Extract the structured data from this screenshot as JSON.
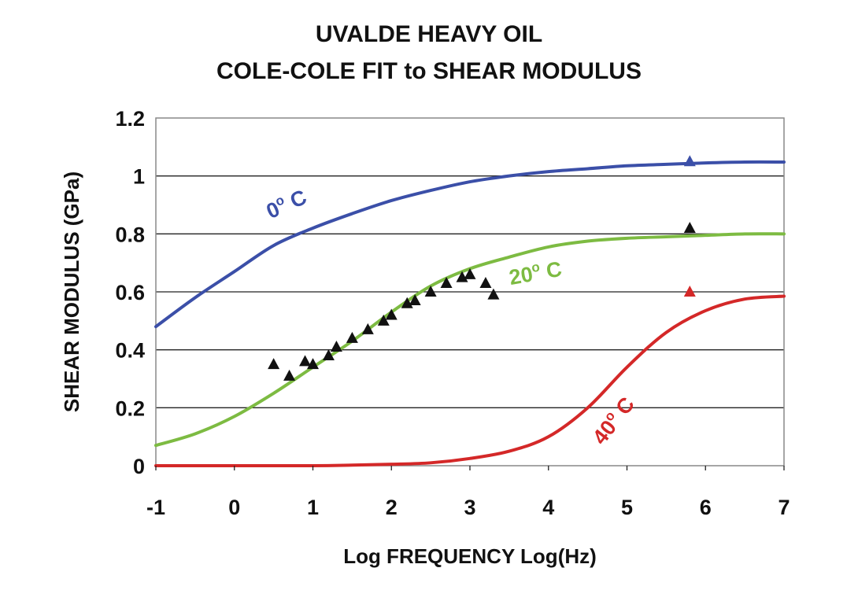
{
  "chart_data": {
    "type": "line",
    "title": "UVALDE HEAVY OIL",
    "subtitle": "COLE-COLE FIT to SHEAR MODULUS",
    "xlabel": "Log FREQUENCY  Log(Hz)",
    "ylabel": "SHEAR MODULUS (GPa)",
    "xlim": [
      -1,
      7
    ],
    "ylim": [
      0,
      1.2
    ],
    "x_ticks": [
      "-1",
      "0",
      "1",
      "2",
      "3",
      "4",
      "5",
      "6",
      "7"
    ],
    "y_ticks": [
      "0",
      "0.2",
      "0.4",
      "0.6",
      "0.8",
      "1",
      "1.2"
    ],
    "grid": "horizontal",
    "series": [
      {
        "name": "0° C",
        "label_main": "0",
        "label_sup": "o",
        "label_tail": " C",
        "color": "#3b4fa8",
        "x": [
          -1,
          -0.5,
          0,
          0.5,
          1,
          1.5,
          2,
          2.5,
          3,
          3.5,
          4,
          4.5,
          5,
          5.5,
          6,
          6.5,
          7
        ],
        "y": [
          0.48,
          0.58,
          0.67,
          0.76,
          0.82,
          0.87,
          0.915,
          0.95,
          0.98,
          1.0,
          1.015,
          1.025,
          1.035,
          1.04,
          1.045,
          1.048,
          1.048
        ]
      },
      {
        "name": "20° C",
        "label_main": "20",
        "label_sup": "o",
        "label_tail": " C",
        "color": "#7dbb42",
        "x": [
          -1,
          -0.5,
          0,
          0.5,
          1,
          1.5,
          2,
          2.5,
          3,
          3.5,
          4,
          4.5,
          5,
          5.5,
          6,
          6.5,
          7
        ],
        "y": [
          0.07,
          0.11,
          0.17,
          0.25,
          0.34,
          0.43,
          0.53,
          0.62,
          0.68,
          0.72,
          0.755,
          0.775,
          0.785,
          0.79,
          0.795,
          0.8,
          0.8
        ]
      },
      {
        "name": "40° C",
        "label_main": "40",
        "label_sup": "o",
        "label_tail": " C",
        "color": "#d42828",
        "x": [
          -1,
          0,
          1,
          1.5,
          2,
          2.5,
          3,
          3.5,
          4,
          4.5,
          5,
          5.5,
          6,
          6.5,
          7
        ],
        "y": [
          0,
          0,
          0,
          0.002,
          0.005,
          0.01,
          0.025,
          0.05,
          0.1,
          0.2,
          0.34,
          0.46,
          0.535,
          0.575,
          0.585
        ]
      }
    ],
    "measured_points": [
      {
        "color": "#111111",
        "x": [
          0.5,
          0.7,
          0.9,
          1.0,
          1.2,
          1.3,
          1.5,
          1.7,
          1.9,
          2.0,
          2.2,
          2.3,
          2.5,
          2.7,
          2.9,
          3.0,
          3.2,
          3.3,
          5.8
        ],
        "y": [
          0.35,
          0.31,
          0.36,
          0.35,
          0.38,
          0.41,
          0.44,
          0.47,
          0.5,
          0.52,
          0.56,
          0.57,
          0.6,
          0.63,
          0.65,
          0.66,
          0.63,
          0.59,
          0.82
        ]
      },
      {
        "color": "#3b4fa8",
        "x": [
          5.8
        ],
        "y": [
          1.05
        ]
      },
      {
        "color": "#d42828",
        "x": [
          5.8
        ],
        "y": [
          0.6
        ]
      }
    ]
  }
}
